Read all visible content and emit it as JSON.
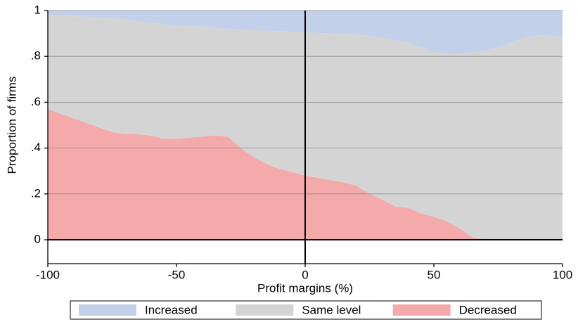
{
  "chart_data": {
    "type": "stacked_area",
    "xlabel": "Profit margins (%)",
    "ylabel": "Proportion of firms",
    "x": [
      -100,
      -95,
      -90,
      -85,
      -80,
      -75,
      -70,
      -65,
      -60,
      -55,
      -50,
      -45,
      -40,
      -35,
      -30,
      -25,
      -20,
      -15,
      -10,
      -5,
      0,
      5,
      10,
      15,
      20,
      25,
      30,
      35,
      40,
      45,
      50,
      55,
      60,
      65,
      70,
      75,
      80,
      85,
      90,
      95,
      100
    ],
    "series": [
      {
        "name": "Increased",
        "color": "#c3d0ea",
        "values": [
          0.02,
          0.022,
          0.025,
          0.027,
          0.03,
          0.035,
          0.04,
          0.048,
          0.055,
          0.06,
          0.065,
          0.068,
          0.07,
          0.075,
          0.08,
          0.083,
          0.085,
          0.088,
          0.09,
          0.093,
          0.095,
          0.098,
          0.1,
          0.103,
          0.105,
          0.112,
          0.12,
          0.13,
          0.14,
          0.16,
          0.18,
          0.19,
          0.19,
          0.182,
          0.175,
          0.16,
          0.14,
          0.12,
          0.11,
          0.11,
          0.115
        ]
      },
      {
        "name": "Same level",
        "color": "#d4d4d4",
        "values": [
          0.41,
          0.428,
          0.445,
          0.463,
          0.48,
          0.495,
          0.5,
          0.492,
          0.49,
          0.5,
          0.495,
          0.487,
          0.48,
          0.47,
          0.47,
          0.517,
          0.555,
          0.582,
          0.6,
          0.612,
          0.625,
          0.632,
          0.64,
          0.647,
          0.66,
          0.688,
          0.705,
          0.725,
          0.72,
          0.725,
          0.72,
          0.73,
          0.76,
          0.808,
          0.825,
          0.84,
          0.86,
          0.88,
          0.89,
          0.89,
          0.885
        ]
      },
      {
        "name": "Decreased",
        "color": "#f4a9ab",
        "values": [
          0.57,
          0.55,
          0.53,
          0.51,
          0.49,
          0.47,
          0.46,
          0.46,
          0.455,
          0.44,
          0.44,
          0.445,
          0.45,
          0.455,
          0.45,
          0.4,
          0.36,
          0.33,
          0.31,
          0.295,
          0.28,
          0.27,
          0.26,
          0.25,
          0.235,
          0.2,
          0.175,
          0.145,
          0.14,
          0.115,
          0.1,
          0.08,
          0.05,
          0.01,
          0,
          0,
          0,
          0,
          0,
          0,
          0
        ]
      }
    ],
    "xlim": [
      -100,
      100
    ],
    "xticks": [
      -100,
      -50,
      0,
      50,
      100
    ],
    "ylim": [
      0,
      1
    ],
    "yticks": [
      0,
      {
        "value": 0.2,
        "label": ".2"
      },
      {
        "value": 0.4,
        "label": ".4"
      },
      {
        "value": 0.6,
        "label": ".6"
      },
      {
        "value": 0.8,
        "label": ".8"
      },
      1
    ],
    "grid": true,
    "legend": "bottom"
  }
}
